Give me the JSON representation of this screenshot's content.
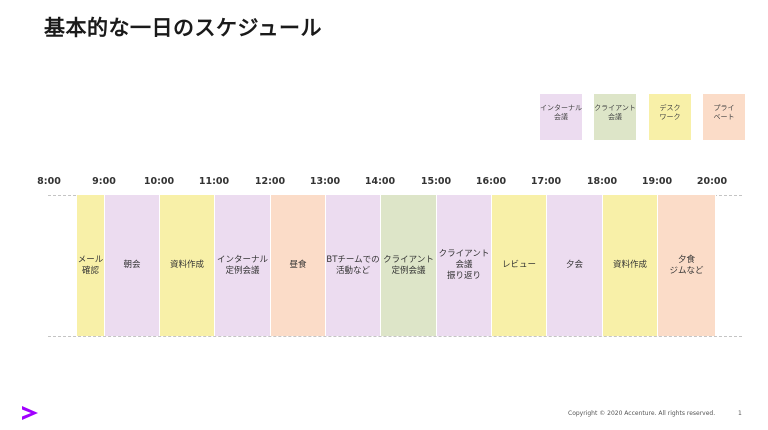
{
  "title": "基本的な一日のスケジュール",
  "colors": {
    "internal": "#ecdcf0",
    "client": "#dde5c8",
    "desk": "#f8f0a8",
    "private": "#fbdcc8",
    "accent": "#a100ff"
  },
  "legend": [
    {
      "label": "インターナル\n会議",
      "category": "internal"
    },
    {
      "label": "クライアント\n会議",
      "category": "client"
    },
    {
      "label": "デスク\nワーク",
      "category": "desk"
    },
    {
      "label": "プライ\nベート",
      "category": "private"
    }
  ],
  "timeline": {
    "hours": [
      "8:00",
      "9:00",
      "10:00",
      "11:00",
      "12:00",
      "13:00",
      "14:00",
      "15:00",
      "16:00",
      "17:00",
      "18:00",
      "19:00",
      "20:00"
    ],
    "blocks": [
      {
        "label": "メール\n確認",
        "category": "desk"
      },
      {
        "label": "朝会",
        "category": "internal"
      },
      {
        "label": "資料作成",
        "category": "desk"
      },
      {
        "label": "インターナル\n定例会議",
        "category": "internal"
      },
      {
        "label": "昼食",
        "category": "private"
      },
      {
        "label": "BTチームでの\n活動など",
        "category": "internal"
      },
      {
        "label": "クライアント\n定例会議",
        "category": "client"
      },
      {
        "label": "クライアント会議\n振り返り",
        "category": "internal"
      },
      {
        "label": "レビュー",
        "category": "desk"
      },
      {
        "label": "夕会",
        "category": "internal"
      },
      {
        "label": "資料作成",
        "category": "desk"
      },
      {
        "label": "夕食\nジムなど",
        "category": "private"
      }
    ]
  },
  "footer": {
    "copyright": "Copyright © 2020 Accenture. All rights reserved.",
    "page": "1",
    "logo": "accenture-greater-than-logo"
  }
}
